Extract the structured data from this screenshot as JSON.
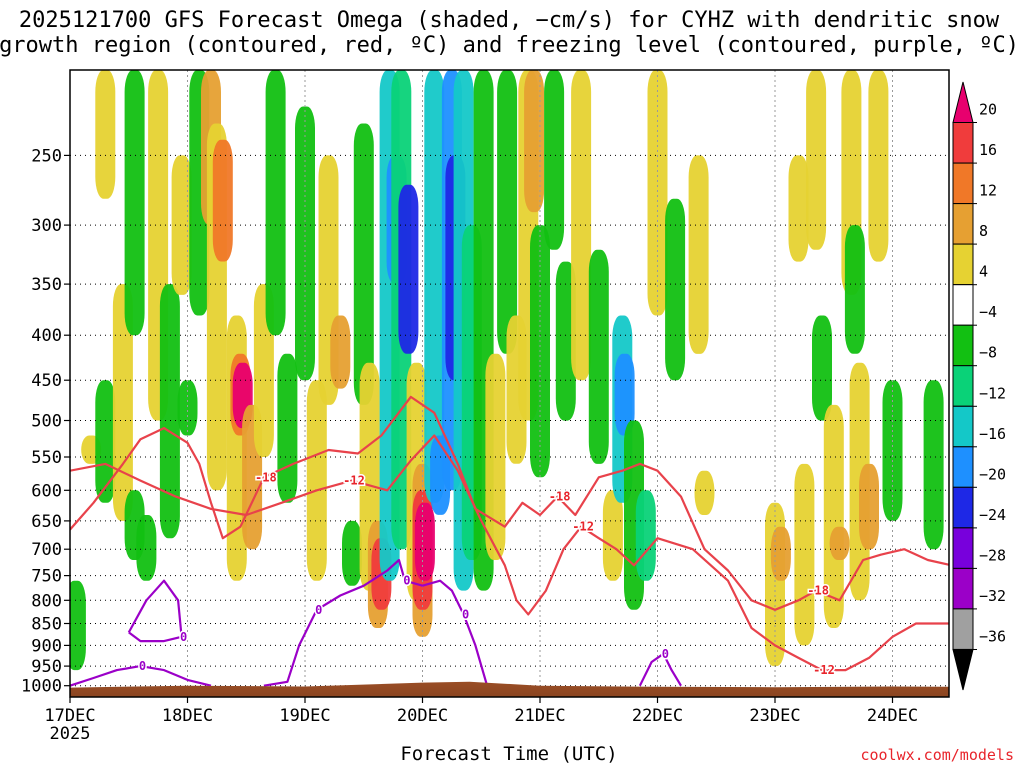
{
  "title_lines": [
    "2025121700 GFS Forecast Omega (shaded, −cm/s) for CYHZ with dendritic snow",
    "growth region (contoured, red, ºC) and freezing level (contoured, purple, ºC)"
  ],
  "credit": "coolwx.com/models",
  "chart_data": {
    "type": "heatmap",
    "title": "2025121700 GFS Forecast Omega (shaded, −cm/s) for CYHZ with dendritic snow growth region (contoured, red, ºC) and freezing level (contoured, purple, ºC)",
    "xlabel": "Forecast Time (UTC)",
    "ylabel": "",
    "x_ticks": [
      {
        "label": "17DEC",
        "sub": "2025",
        "t": 0
      },
      {
        "label": "18DEC",
        "sub": "",
        "t": 1
      },
      {
        "label": "19DEC",
        "sub": "",
        "t": 2
      },
      {
        "label": "20DEC",
        "sub": "",
        "t": 3
      },
      {
        "label": "21DEC",
        "sub": "",
        "t": 4
      },
      {
        "label": "22DEC",
        "sub": "",
        "t": 5
      },
      {
        "label": "23DEC",
        "sub": "",
        "t": 6
      },
      {
        "label": "24DEC",
        "sub": "",
        "t": 7
      }
    ],
    "xlim_days": [
      0,
      7.5
    ],
    "y_ticks": [
      250,
      300,
      350,
      400,
      450,
      500,
      550,
      600,
      650,
      700,
      750,
      800,
      850,
      900,
      950,
      1000
    ],
    "y_unit": "hPa",
    "ylim_hpa": [
      200,
      1030
    ],
    "grid": "dotted",
    "colorbar": {
      "labels": [
        "20",
        "16",
        "12",
        "8",
        "4",
        "−4",
        "−8",
        "−12",
        "−16",
        "−20",
        "−24",
        "−28",
        "−32",
        "−36"
      ],
      "colors": [
        "#e8006e",
        "#f03c3c",
        "#f07828",
        "#e6a032",
        "#e6d232",
        "#ffffff",
        "#12c012",
        "#0ad278",
        "#14c8c8",
        "#1e90ff",
        "#1e28e6",
        "#7800dc",
        "#9b00c8",
        "#a0a0a0",
        "#000000"
      ]
    },
    "omega_cells": [
      {
        "t": 0.05,
        "p1": 760,
        "p2": 960,
        "c": "#12c012"
      },
      {
        "t": 0.18,
        "p1": 520,
        "p2": 560,
        "c": "#e6d232"
      },
      {
        "t": 0.3,
        "p1": 450,
        "p2": 620,
        "c": "#12c012"
      },
      {
        "t": 0.3,
        "p1": 200,
        "p2": 280,
        "c": "#e6d232"
      },
      {
        "t": 0.45,
        "p1": 350,
        "p2": 650,
        "c": "#e6d232"
      },
      {
        "t": 0.55,
        "p1": 600,
        "p2": 720,
        "c": "#12c012"
      },
      {
        "t": 0.55,
        "p1": 200,
        "p2": 400,
        "c": "#12c012"
      },
      {
        "t": 0.65,
        "p1": 640,
        "p2": 760,
        "c": "#12c012"
      },
      {
        "t": 0.75,
        "p1": 200,
        "p2": 500,
        "c": "#e6d232"
      },
      {
        "t": 0.85,
        "p1": 350,
        "p2": 680,
        "c": "#12c012"
      },
      {
        "t": 0.95,
        "p1": 250,
        "p2": 360,
        "c": "#e6d232"
      },
      {
        "t": 1.0,
        "p1": 450,
        "p2": 520,
        "c": "#12c012"
      },
      {
        "t": 1.1,
        "p1": 200,
        "p2": 380,
        "c": "#12c012"
      },
      {
        "t": 1.2,
        "p1": 200,
        "p2": 300,
        "c": "#e6a032"
      },
      {
        "t": 1.25,
        "p1": 230,
        "p2": 600,
        "c": "#e6d232"
      },
      {
        "t": 1.3,
        "p1": 240,
        "p2": 330,
        "c": "#f07828"
      },
      {
        "t": 1.42,
        "p1": 380,
        "p2": 760,
        "c": "#e6d232"
      },
      {
        "t": 1.45,
        "p1": 420,
        "p2": 520,
        "c": "#f07828"
      },
      {
        "t": 1.47,
        "p1": 430,
        "p2": 510,
        "c": "#e8006e"
      },
      {
        "t": 1.55,
        "p1": 480,
        "p2": 700,
        "c": "#e6a032"
      },
      {
        "t": 1.65,
        "p1": 350,
        "p2": 550,
        "c": "#e6d232"
      },
      {
        "t": 1.75,
        "p1": 200,
        "p2": 400,
        "c": "#12c012"
      },
      {
        "t": 1.85,
        "p1": 420,
        "p2": 620,
        "c": "#12c012"
      },
      {
        "t": 2.0,
        "p1": 220,
        "p2": 450,
        "c": "#12c012"
      },
      {
        "t": 2.1,
        "p1": 450,
        "p2": 760,
        "c": "#e6d232"
      },
      {
        "t": 2.2,
        "p1": 250,
        "p2": 480,
        "c": "#e6d232"
      },
      {
        "t": 2.3,
        "p1": 380,
        "p2": 460,
        "c": "#e6a032"
      },
      {
        "t": 2.4,
        "p1": 650,
        "p2": 770,
        "c": "#12c012"
      },
      {
        "t": 2.5,
        "p1": 230,
        "p2": 480,
        "c": "#12c012"
      },
      {
        "t": 2.55,
        "p1": 430,
        "p2": 780,
        "c": "#e6d232"
      },
      {
        "t": 2.62,
        "p1": 650,
        "p2": 860,
        "c": "#e6a032"
      },
      {
        "t": 2.65,
        "p1": 680,
        "p2": 820,
        "c": "#f03c3c"
      },
      {
        "t": 2.72,
        "p1": 200,
        "p2": 760,
        "c": "#14c8c8"
      },
      {
        "t": 2.78,
        "p1": 250,
        "p2": 350,
        "c": "#1e90ff"
      },
      {
        "t": 2.82,
        "p1": 200,
        "p2": 700,
        "c": "#0ad278"
      },
      {
        "t": 2.88,
        "p1": 270,
        "p2": 420,
        "c": "#1e28e6"
      },
      {
        "t": 2.95,
        "p1": 430,
        "p2": 800,
        "c": "#e6d232"
      },
      {
        "t": 3.0,
        "p1": 560,
        "p2": 880,
        "c": "#e6a032"
      },
      {
        "t": 3.0,
        "p1": 600,
        "p2": 820,
        "c": "#f03c3c"
      },
      {
        "t": 3.02,
        "p1": 620,
        "p2": 760,
        "c": "#e8006e"
      },
      {
        "t": 3.1,
        "p1": 200,
        "p2": 620,
        "c": "#14c8c8"
      },
      {
        "t": 3.15,
        "p1": 520,
        "p2": 640,
        "c": "#1e90ff"
      },
      {
        "t": 3.25,
        "p1": 200,
        "p2": 600,
        "c": "#1e90ff"
      },
      {
        "t": 3.28,
        "p1": 250,
        "p2": 450,
        "c": "#1e28e6"
      },
      {
        "t": 3.35,
        "p1": 200,
        "p2": 780,
        "c": "#14c8c8"
      },
      {
        "t": 3.42,
        "p1": 300,
        "p2": 720,
        "c": "#0ad278"
      },
      {
        "t": 3.52,
        "p1": 200,
        "p2": 780,
        "c": "#12c012"
      },
      {
        "t": 3.62,
        "p1": 420,
        "p2": 720,
        "c": "#e6d232"
      },
      {
        "t": 3.72,
        "p1": 200,
        "p2": 420,
        "c": "#12c012"
      },
      {
        "t": 3.8,
        "p1": 380,
        "p2": 560,
        "c": "#e6d232"
      },
      {
        "t": 3.9,
        "p1": 200,
        "p2": 500,
        "c": "#e6d232"
      },
      {
        "t": 3.95,
        "p1": 200,
        "p2": 290,
        "c": "#e6a032"
      },
      {
        "t": 4.0,
        "p1": 300,
        "p2": 580,
        "c": "#12c012"
      },
      {
        "t": 4.12,
        "p1": 200,
        "p2": 320,
        "c": "#12c012"
      },
      {
        "t": 4.22,
        "p1": 330,
        "p2": 500,
        "c": "#12c012"
      },
      {
        "t": 4.35,
        "p1": 200,
        "p2": 450,
        "c": "#e6d232"
      },
      {
        "t": 4.5,
        "p1": 320,
        "p2": 560,
        "c": "#12c012"
      },
      {
        "t": 4.62,
        "p1": 600,
        "p2": 760,
        "c": "#e6d232"
      },
      {
        "t": 4.7,
        "p1": 380,
        "p2": 620,
        "c": "#14c8c8"
      },
      {
        "t": 4.72,
        "p1": 420,
        "p2": 520,
        "c": "#1e90ff"
      },
      {
        "t": 4.8,
        "p1": 500,
        "p2": 820,
        "c": "#12c012"
      },
      {
        "t": 4.9,
        "p1": 600,
        "p2": 760,
        "c": "#0ad278"
      },
      {
        "t": 5.0,
        "p1": 200,
        "p2": 380,
        "c": "#e6d232"
      },
      {
        "t": 5.15,
        "p1": 280,
        "p2": 450,
        "c": "#12c012"
      },
      {
        "t": 5.35,
        "p1": 250,
        "p2": 420,
        "c": "#e6d232"
      },
      {
        "t": 5.4,
        "p1": 570,
        "p2": 640,
        "c": "#e6d232"
      },
      {
        "t": 6.0,
        "p1": 620,
        "p2": 950,
        "c": "#e6d232"
      },
      {
        "t": 6.05,
        "p1": 660,
        "p2": 760,
        "c": "#e6a032"
      },
      {
        "t": 6.2,
        "p1": 250,
        "p2": 330,
        "c": "#e6d232"
      },
      {
        "t": 6.25,
        "p1": 560,
        "p2": 900,
        "c": "#e6d232"
      },
      {
        "t": 6.35,
        "p1": 200,
        "p2": 320,
        "c": "#e6d232"
      },
      {
        "t": 6.4,
        "p1": 380,
        "p2": 500,
        "c": "#12c012"
      },
      {
        "t": 6.5,
        "p1": 480,
        "p2": 860,
        "c": "#e6d232"
      },
      {
        "t": 6.55,
        "p1": 660,
        "p2": 720,
        "c": "#e6a032"
      },
      {
        "t": 6.65,
        "p1": 200,
        "p2": 360,
        "c": "#e6d232"
      },
      {
        "t": 6.68,
        "p1": 300,
        "p2": 420,
        "c": "#12c012"
      },
      {
        "t": 6.72,
        "p1": 430,
        "p2": 800,
        "c": "#e6d232"
      },
      {
        "t": 6.8,
        "p1": 560,
        "p2": 700,
        "c": "#e6a032"
      },
      {
        "t": 6.88,
        "p1": 200,
        "p2": 330,
        "c": "#e6d232"
      },
      {
        "t": 7.0,
        "p1": 450,
        "p2": 650,
        "c": "#12c012"
      },
      {
        "t": 7.35,
        "p1": 450,
        "p2": 700,
        "c": "#12c012"
      }
    ],
    "dendritic_contours": [
      {
        "level": "-12",
        "points": [
          [
            0,
            570
          ],
          [
            0.3,
            560
          ],
          [
            0.6,
            585
          ],
          [
            0.9,
            610
          ],
          [
            1.2,
            630
          ],
          [
            1.5,
            640
          ],
          [
            1.8,
            620
          ],
          [
            2.1,
            600
          ],
          [
            2.4,
            585
          ],
          [
            2.7,
            600
          ],
          [
            2.9,
            555
          ],
          [
            3.1,
            520
          ],
          [
            3.3,
            570
          ],
          [
            3.5,
            650
          ],
          [
            3.7,
            730
          ],
          [
            3.8,
            800
          ],
          [
            3.9,
            830
          ],
          [
            4.05,
            780
          ],
          [
            4.2,
            700
          ],
          [
            4.35,
            660
          ],
          [
            4.5,
            680
          ],
          [
            4.65,
            700
          ],
          [
            4.8,
            730
          ],
          [
            5.0,
            680
          ],
          [
            5.3,
            700
          ],
          [
            5.6,
            760
          ],
          [
            5.8,
            860
          ],
          [
            6.0,
            900
          ],
          [
            6.2,
            930
          ],
          [
            6.4,
            960
          ],
          [
            6.6,
            960
          ],
          [
            6.8,
            930
          ],
          [
            7.0,
            880
          ],
          [
            7.2,
            850
          ],
          [
            7.5,
            850
          ]
        ]
      },
      {
        "level": "-18",
        "points": [
          [
            0,
            665
          ],
          [
            0.2,
            620
          ],
          [
            0.45,
            560
          ],
          [
            0.6,
            525
          ],
          [
            0.8,
            510
          ],
          [
            1.0,
            530
          ],
          [
            1.1,
            560
          ],
          [
            1.2,
            620
          ],
          [
            1.3,
            680
          ],
          [
            1.45,
            660
          ],
          [
            1.65,
            580
          ],
          [
            1.9,
            560
          ],
          [
            2.2,
            540
          ],
          [
            2.45,
            545
          ],
          [
            2.65,
            520
          ],
          [
            2.9,
            470
          ],
          [
            3.1,
            490
          ],
          [
            3.3,
            560
          ],
          [
            3.45,
            630
          ],
          [
            3.7,
            660
          ],
          [
            3.85,
            620
          ],
          [
            4.0,
            640
          ],
          [
            4.15,
            610
          ],
          [
            4.3,
            640
          ],
          [
            4.5,
            580
          ],
          [
            4.7,
            570
          ],
          [
            4.85,
            560
          ],
          [
            5.0,
            570
          ],
          [
            5.2,
            610
          ],
          [
            5.4,
            700
          ],
          [
            5.6,
            740
          ],
          [
            5.8,
            800
          ],
          [
            6.0,
            820
          ],
          [
            6.2,
            800
          ],
          [
            6.35,
            780
          ],
          [
            6.55,
            800
          ],
          [
            6.75,
            720
          ],
          [
            6.9,
            710
          ],
          [
            7.1,
            700
          ],
          [
            7.3,
            720
          ],
          [
            7.5,
            730
          ]
        ]
      }
    ],
    "freezing_level_contours": [
      {
        "level": "0",
        "points": [
          [
            0,
            1000
          ],
          [
            0.2,
            980
          ],
          [
            0.4,
            960
          ],
          [
            0.6,
            950
          ],
          [
            0.8,
            960
          ],
          [
            1.0,
            985
          ],
          [
            1.2,
            1000
          ]
        ]
      },
      {
        "level": "0",
        "points": [
          [
            0.5,
            870
          ],
          [
            0.65,
            800
          ],
          [
            0.8,
            760
          ],
          [
            0.92,
            800
          ],
          [
            0.95,
            880
          ],
          [
            0.8,
            890
          ],
          [
            0.6,
            890
          ],
          [
            0.5,
            870
          ]
        ]
      },
      {
        "level": "0",
        "points": [
          [
            1.65,
            1000
          ],
          [
            1.85,
            990
          ],
          [
            1.95,
            900
          ],
          [
            2.1,
            820
          ],
          [
            2.3,
            790
          ],
          [
            2.5,
            770
          ],
          [
            2.7,
            740
          ],
          [
            2.8,
            720
          ],
          [
            2.85,
            760
          ],
          [
            3.0,
            770
          ],
          [
            3.15,
            760
          ],
          [
            3.25,
            780
          ],
          [
            3.35,
            830
          ],
          [
            3.45,
            900
          ],
          [
            3.55,
            1000
          ]
        ]
      },
      {
        "level": "0",
        "points": [
          [
            4.85,
            1000
          ],
          [
            4.95,
            940
          ],
          [
            5.05,
            920
          ],
          [
            5.12,
            960
          ],
          [
            5.2,
            1000
          ]
        ]
      }
    ],
    "terrain_color": "#a0522d"
  }
}
